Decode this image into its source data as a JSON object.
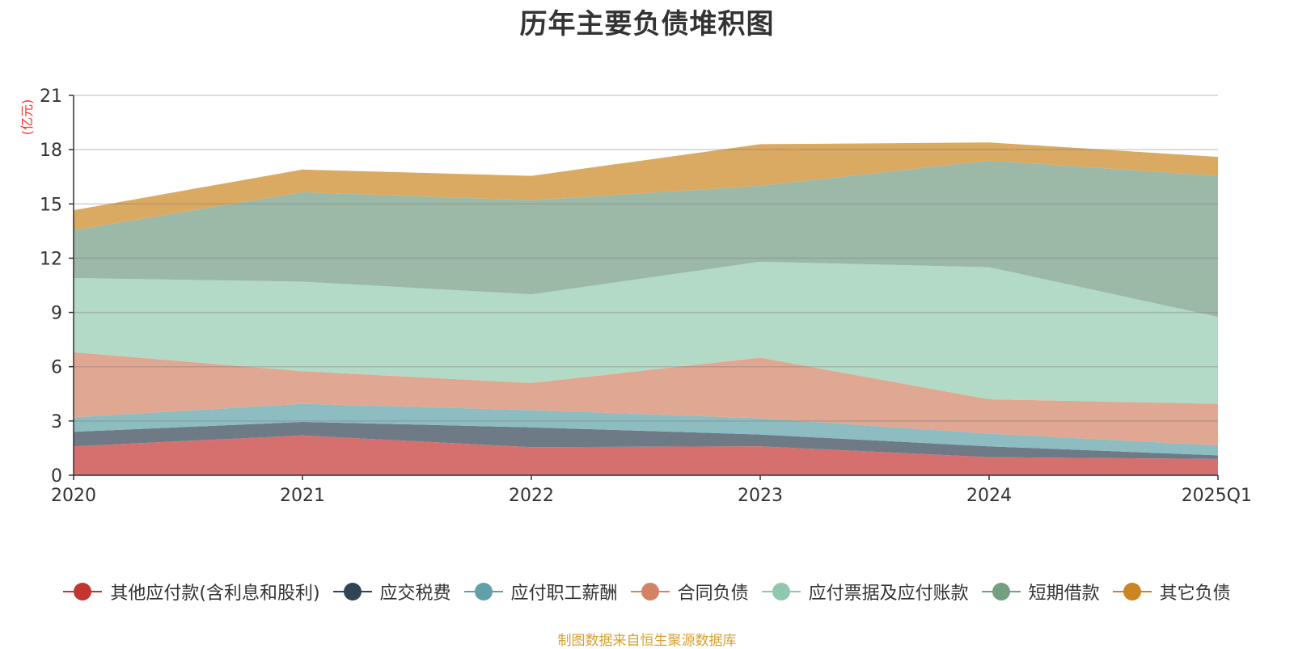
{
  "chart_data": {
    "type": "area",
    "title": "历年主要负债堆积图",
    "unit_label": "(亿元)",
    "categories": [
      "2020",
      "2021",
      "2022",
      "2023",
      "2024",
      "2025Q1"
    ],
    "y_ticks": [
      "0",
      "3",
      "6",
      "9",
      "12",
      "15",
      "18",
      "21"
    ],
    "ylim": [
      0,
      21
    ],
    "stacked": true,
    "grid": true,
    "legend_position": "bottom",
    "series": [
      {
        "name": "其他应付款(含利息和股利)",
        "color": "#d5706e",
        "legend_color": "#c23531",
        "values": [
          1.6,
          2.2,
          1.55,
          1.6,
          1.0,
          0.9
        ]
      },
      {
        "name": "应交税费",
        "color": "#6e7b87",
        "legend_color": "#2f4554",
        "values": [
          0.8,
          0.75,
          1.1,
          0.65,
          0.6,
          0.2
        ]
      },
      {
        "name": "应付职工薪酬",
        "color": "#8dbcc1",
        "legend_color": "#61a0a8",
        "values": [
          0.8,
          1.0,
          0.95,
          0.9,
          0.7,
          0.55
        ]
      },
      {
        "name": "合同负债",
        "color": "#e0a792",
        "legend_color": "#d48265",
        "values": [
          3.6,
          1.8,
          1.5,
          3.35,
          1.9,
          2.3
        ]
      },
      {
        "name": "应付票据及应付账款",
        "color": "#b2dac6",
        "legend_color": "#91c7ae",
        "values": [
          4.1,
          4.95,
          4.9,
          5.3,
          7.3,
          4.8
        ]
      },
      {
        "name": "短期借款",
        "color": "#9cb9a8",
        "legend_color": "#749f83",
        "values": [
          2.65,
          4.95,
          5.2,
          4.2,
          5.9,
          7.8
        ]
      },
      {
        "name": "其它负债",
        "color": "#daa962",
        "legend_color": "#ca8622",
        "values": [
          1.1,
          1.25,
          1.35,
          2.3,
          1.0,
          1.05
        ]
      }
    ]
  },
  "footer": {
    "source": "制图数据来自恒生聚源数据库"
  }
}
